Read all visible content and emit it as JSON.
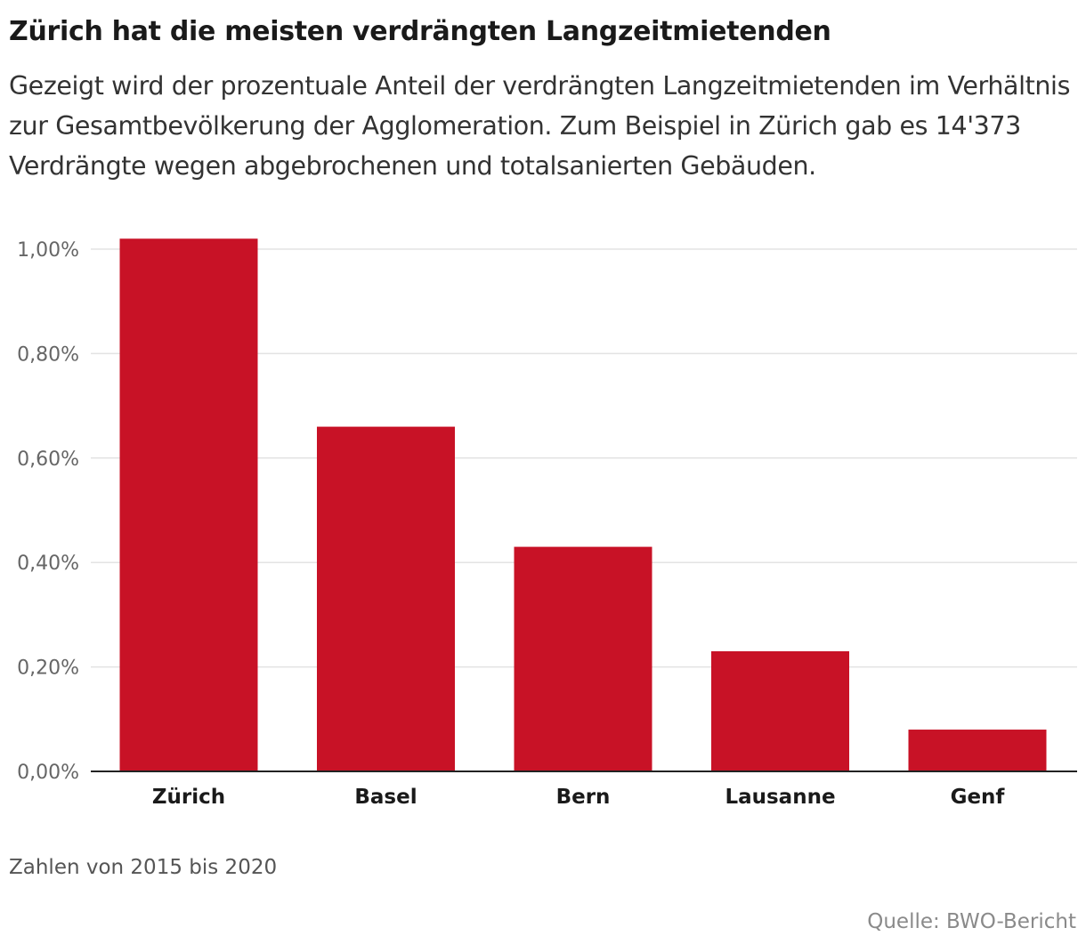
{
  "title": "Zürich hat die meisten verdrängten Langzeitmietenden",
  "subtitle": "Gezeigt wird der prozentuale Anteil der verdrängten Langzeitmietenden im Verhältnis zur Gesamtbevölkerung der Agglomeration. Zum Beispiel in Zürich gab es 14'373 Verdrängte wegen abgebrochenen und totalsanierten Gebäuden.",
  "note": "Zahlen von 2015 bis 2020",
  "source": "Quelle: BWO-Bericht",
  "colors": {
    "bar": "#c81226",
    "grid": "#e3e3e3",
    "axis": "#222222",
    "tick_text": "#666666",
    "category_text": "#1a1a1a"
  },
  "chart_data": {
    "type": "bar",
    "categories": [
      "Zürich",
      "Basel",
      "Bern",
      "Lausanne",
      "Genf"
    ],
    "values": [
      1.02,
      0.66,
      0.43,
      0.23,
      0.08
    ],
    "ylim": [
      0,
      1.0
    ],
    "yticks": [
      0,
      0.2,
      0.4,
      0.6,
      0.8,
      1.0
    ],
    "ytick_labels": [
      "0,00%",
      "0,20%",
      "0,40%",
      "0,60%",
      "0,80%",
      "1,00%"
    ],
    "xlabel": "",
    "ylabel": "",
    "grid": true
  }
}
